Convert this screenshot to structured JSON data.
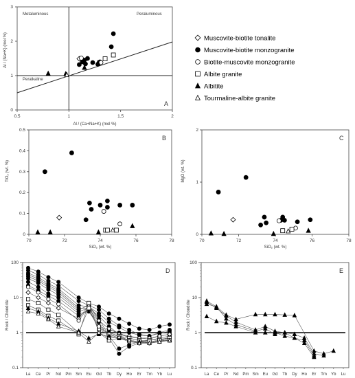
{
  "legend": [
    {
      "label": "Muscovite-biotite tonalite",
      "marker": "diamond-open"
    },
    {
      "label": "Muscovite-biotite monzogranite",
      "marker": "circle-filled"
    },
    {
      "label": "Biotite-muscovite monzogranite",
      "marker": "circle-open"
    },
    {
      "label": "Albite granite",
      "marker": "square-open"
    },
    {
      "label": "Albitite",
      "marker": "triangle-filled"
    },
    {
      "label": "Tourmaline-albite granite",
      "marker": "triangle-open"
    }
  ],
  "chart_data": [
    {
      "id": "A",
      "type": "scatter",
      "panel_label": "A",
      "xlabel": "Al / (Ca+Na+K) (mol %)",
      "ylabel": "Al / (Na+K) (mol %)",
      "xlim": [
        0.5,
        2
      ],
      "ylim": [
        0,
        3
      ],
      "xticks": [
        "0.5",
        "1",
        "1.5",
        "2"
      ],
      "yticks": [
        "0",
        "1",
        "2",
        "3"
      ],
      "region_labels": [
        "Metaluminous",
        "Peraluminous",
        "Peralkaline"
      ],
      "reference_lines": [
        {
          "kind": "vertical",
          "x": 1
        },
        {
          "kind": "horizontal",
          "y": 1
        },
        {
          "kind": "segment",
          "x1": 0.5,
          "y1": 0.5,
          "x2": 2,
          "y2": 1.98
        }
      ],
      "series": [
        {
          "name": "Muscovite-biotite tonalite",
          "marker": "diamond-open",
          "points": [
            [
              1.1,
              1.49
            ]
          ]
        },
        {
          "name": "Muscovite-biotite monzogranite",
          "marker": "circle-filled",
          "points": [
            [
              1.1,
              1.32
            ],
            [
              1.13,
              1.4
            ],
            [
              1.15,
              1.45
            ],
            [
              1.16,
              1.34
            ],
            [
              1.18,
              1.5
            ],
            [
              1.23,
              1.38
            ],
            [
              1.28,
              1.33
            ],
            [
              1.3,
              1.4
            ],
            [
              1.41,
              1.84
            ],
            [
              1.43,
              2.22
            ]
          ]
        },
        {
          "name": "Biotite-muscovite monzogranite",
          "marker": "circle-open",
          "points": [
            [
              1.12,
              1.51
            ],
            [
              1.31,
              1.38
            ]
          ]
        },
        {
          "name": "Albite granite",
          "marker": "square-open",
          "points": [
            [
              1.35,
              1.49
            ],
            [
              1.43,
              1.6
            ]
          ]
        },
        {
          "name": "Albitite",
          "marker": "triangle-filled",
          "points": [
            [
              0.8,
              1.06
            ],
            [
              0.97,
              1.05
            ],
            [
              1.15,
              1.23
            ],
            [
              1.28,
              1.37
            ]
          ]
        },
        {
          "name": "Tourmaline-albite granite",
          "marker": "triangle-open",
          "points": [
            [
              0.98,
              1.02
            ]
          ]
        }
      ]
    },
    {
      "id": "B",
      "type": "scatter",
      "panel_label": "B",
      "xlabel": "SiO₂ (wt. %)",
      "ylabel": "TiO₂ (wt. %)",
      "xlim": [
        70,
        78
      ],
      "ylim": [
        0,
        0.5
      ],
      "xticks": [
        "70",
        "72",
        "74",
        "76",
        "78"
      ],
      "yticks": [
        "0",
        "0.1",
        "0.2",
        "0.3",
        "0.4",
        "0.5"
      ],
      "series": [
        {
          "name": "Muscovite-biotite tonalite",
          "marker": "diamond-open",
          "points": [
            [
              71.7,
              0.08
            ]
          ]
        },
        {
          "name": "Muscovite-biotite monzogranite",
          "marker": "circle-filled",
          "points": [
            [
              70.9,
              0.3
            ],
            [
              72.4,
              0.39
            ],
            [
              73.2,
              0.07
            ],
            [
              73.4,
              0.15
            ],
            [
              73.5,
              0.12
            ],
            [
              74.0,
              0.14
            ],
            [
              74.4,
              0.16
            ],
            [
              74.4,
              0.13
            ],
            [
              75.1,
              0.14
            ],
            [
              75.8,
              0.14
            ]
          ]
        },
        {
          "name": "Biotite-muscovite monzogranite",
          "marker": "circle-open",
          "points": [
            [
              74.2,
              0.11
            ],
            [
              75.1,
              0.05
            ]
          ]
        },
        {
          "name": "Albite granite",
          "marker": "square-open",
          "points": [
            [
              74.3,
              0.02
            ],
            [
              74.4,
              0.02
            ],
            [
              74.9,
              0.02
            ]
          ]
        },
        {
          "name": "Albitite",
          "marker": "triangle-filled",
          "points": [
            [
              70.5,
              0.01
            ],
            [
              71.2,
              0.01
            ],
            [
              73.9,
              0.01
            ],
            [
              75.8,
              0.04
            ]
          ]
        },
        {
          "name": "Tourmaline-albite granite",
          "marker": "triangle-open",
          "points": [
            [
              74.7,
              0.02
            ]
          ]
        }
      ]
    },
    {
      "id": "C",
      "type": "scatter",
      "panel_label": "C",
      "xlabel": "SiO₂ (wt. %)",
      "ylabel": "MgO (wt. %)",
      "xlim": [
        70,
        78
      ],
      "ylim": [
        0,
        2
      ],
      "xticks": [
        "70",
        "72",
        "74",
        "76",
        "78"
      ],
      "yticks": [
        "0",
        "1",
        "2"
      ],
      "series": [
        {
          "name": "Muscovite-biotite tonalite",
          "marker": "diamond-open",
          "points": [
            [
              71.7,
              0.28
            ]
          ]
        },
        {
          "name": "Muscovite-biotite monzogranite",
          "marker": "circle-filled",
          "points": [
            [
              70.9,
              0.81
            ],
            [
              72.4,
              1.09
            ],
            [
              73.2,
              0.18
            ],
            [
              73.4,
              0.33
            ],
            [
              73.5,
              0.22
            ],
            [
              74.3,
              0.27
            ],
            [
              74.4,
              0.33
            ],
            [
              74.5,
              0.27
            ],
            [
              75.2,
              0.24
            ],
            [
              75.9,
              0.28
            ]
          ]
        },
        {
          "name": "Biotite-muscovite monzogranite",
          "marker": "circle-open",
          "points": [
            [
              74.2,
              0.26
            ],
            [
              75.1,
              0.12
            ]
          ]
        },
        {
          "name": "Albite granite",
          "marker": "square-open",
          "points": [
            [
              74.4,
              0.07
            ],
            [
              74.9,
              0.1
            ]
          ]
        },
        {
          "name": "Albitite",
          "marker": "triangle-filled",
          "points": [
            [
              70.5,
              0.02
            ],
            [
              71.2,
              0.01
            ],
            [
              73.9,
              0.01
            ],
            [
              75.8,
              0.07
            ]
          ]
        },
        {
          "name": "Tourmaline-albite granite",
          "marker": "triangle-open",
          "points": [
            [
              74.7,
              0.06
            ]
          ]
        }
      ]
    },
    {
      "id": "D",
      "type": "line",
      "panel_label": "D",
      "ylabel": "Rock / Chondrite",
      "yscale": "log",
      "ylim": [
        0.1,
        100
      ],
      "yticks": [
        "0.1",
        "1",
        "10",
        "100"
      ],
      "reference_line_y": 1,
      "categories": [
        "La",
        "Ce",
        "Pr",
        "Nd",
        "Pm",
        "Sm",
        "Eu",
        "Gd",
        "Tb",
        "Dy",
        "Ho",
        "Er",
        "Tm",
        "Yb",
        "Lu"
      ],
      "series": [
        {
          "marker": "circle-filled",
          "values": [
            70,
            55,
            38,
            28,
            null,
            10,
            7,
            5.5,
            3.5,
            2.5,
            1.8,
            1.3,
            1.2,
            1.5,
            1.7
          ]
        },
        {
          "marker": "circle-filled",
          "values": [
            60,
            45,
            30,
            22,
            null,
            8,
            6,
            4.5,
            2.5,
            1.6,
            1.2,
            0.9,
            0.8,
            1.0,
            1.2
          ]
        },
        {
          "marker": "circle-filled",
          "values": [
            50,
            38,
            25,
            18,
            null,
            6,
            5.5,
            3.5,
            2.0,
            1.4,
            1.0,
            0.85,
            0.8,
            0.95,
            1.1
          ]
        },
        {
          "marker": "circle-filled",
          "values": [
            45,
            34,
            22,
            16,
            null,
            5,
            5,
            3.0,
            1.5,
            0.9,
            0.75,
            0.7,
            0.65,
            0.8,
            0.9
          ]
        },
        {
          "marker": "circle-filled",
          "values": [
            40,
            30,
            20,
            14,
            null,
            4.5,
            6,
            2.5,
            0.8,
            0.35,
            0.45,
            0.55,
            0.6,
            0.7,
            0.8
          ]
        },
        {
          "marker": "circle-filled",
          "values": [
            35,
            26,
            17,
            12,
            null,
            4,
            5,
            2.0,
            0.7,
            0.25,
            0.4,
            0.5,
            0.55,
            0.6,
            0.75
          ]
        },
        {
          "marker": "circle-filled",
          "values": [
            28,
            20,
            13,
            10,
            null,
            3.5,
            4,
            1.5,
            1.2,
            1.0,
            0.7,
            0.6,
            0.5,
            0.55,
            0.65
          ]
        },
        {
          "marker": "circle-filled",
          "values": [
            22,
            16,
            11,
            8,
            null,
            3,
            4.5,
            1.3,
            1.0,
            0.8,
            0.6,
            0.55,
            0.5,
            0.6,
            0.7
          ]
        },
        {
          "marker": "diamond-open",
          "values": [
            14,
            10,
            7,
            5,
            null,
            2.5,
            6,
            2.2,
            1.3,
            0.9,
            0.8,
            0.7,
            0.7,
            0.8,
            0.9
          ]
        },
        {
          "marker": "circle-open",
          "values": [
            20,
            14,
            9,
            6.5,
            null,
            2.2,
            5.5,
            1.5,
            0.9,
            0.7,
            0.55,
            0.5,
            0.55,
            0.6,
            0.6
          ]
        },
        {
          "marker": "square-open",
          "values": [
            9,
            7,
            4.5,
            3.2,
            null,
            1.0,
            5,
            1.2,
            0.9,
            0.8,
            0.7,
            0.6,
            0.6,
            0.65,
            0.7
          ]
        },
        {
          "marker": "square-open",
          "values": [
            6,
            4.5,
            3,
            2.2,
            null,
            0.9,
            7,
            1.0,
            0.6,
            0.7,
            0.6,
            0.55,
            0.55,
            0.6,
            0.6
          ]
        },
        {
          "marker": "triangle-filled",
          "values": [
            5,
            4,
            2.6,
            1.8,
            null,
            1.1,
            0.7,
            0.9,
            0.8,
            0.7,
            0.6,
            0.55,
            0.5,
            0.55,
            0.6
          ]
        },
        {
          "marker": "triangle-open",
          "values": [
            4,
            3.5,
            2.4,
            1.5,
            null,
            1.0,
            0.55,
            1.0,
            0.7,
            0.75,
            0.6,
            0.5,
            0.5,
            0.55,
            0.6
          ]
        }
      ]
    },
    {
      "id": "E",
      "type": "line",
      "panel_label": "E",
      "ylabel": "Rock / Chondrite",
      "yscale": "log",
      "ylim": [
        0.1,
        100
      ],
      "yticks": [
        "0.1",
        "1",
        "10",
        "100"
      ],
      "reference_line_y": 1,
      "categories": [
        "La",
        "Ce",
        "Pr",
        "Nd",
        "Pm",
        "Sm",
        "Eu",
        "Gd",
        "Tb",
        "Dy",
        "Ho",
        "Er",
        "Tm",
        "Yb",
        "Lu"
      ],
      "series": [
        {
          "marker": "triangle-filled",
          "values": [
            8,
            5.5,
            3.2,
            2.4,
            null,
            3.3,
            3.3,
            3.3,
            3.2,
            3.1,
            null,
            0.3,
            0.25,
            0.3,
            null
          ]
        },
        {
          "marker": "triangle-filled",
          "values": [
            7.5,
            5.0,
            3.0,
            2.0,
            null,
            1.2,
            1.5,
            1.1,
            1.0,
            0.9,
            0.7,
            0.25,
            0.22,
            null,
            null
          ]
        },
        {
          "marker": "triangle-filled",
          "values": [
            6.5,
            5.5,
            2.5,
            1.7,
            null,
            1.1,
            1.3,
            0.9,
            1.0,
            0.7,
            0.6,
            0.22,
            null,
            null,
            null
          ]
        },
        {
          "marker": "triangle-filled",
          "values": [
            2.9,
            2.1,
            1.9,
            1.5,
            null,
            1.0,
            1.0,
            1.0,
            0.8,
            0.7,
            0.5,
            0.2,
            null,
            null,
            null
          ]
        }
      ]
    }
  ]
}
